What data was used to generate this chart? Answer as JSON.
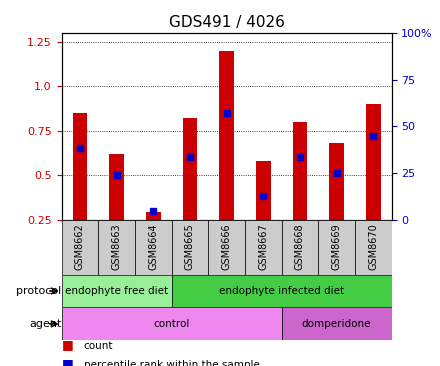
{
  "title": "GDS491 / 4026",
  "samples": [
    "GSM8662",
    "GSM8663",
    "GSM8664",
    "GSM8665",
    "GSM8666",
    "GSM8667",
    "GSM8668",
    "GSM8669",
    "GSM8670"
  ],
  "count_values": [
    0.85,
    0.62,
    0.29,
    0.82,
    1.2,
    0.58,
    0.8,
    0.68,
    0.9
  ],
  "percentile_values": [
    0.65,
    0.5,
    0.3,
    0.6,
    0.85,
    0.38,
    0.6,
    0.51,
    0.72
  ],
  "ylim_left": [
    0.25,
    1.3
  ],
  "ylim_right": [
    0,
    100
  ],
  "yticks_left": [
    0.25,
    0.5,
    0.75,
    1.0,
    1.25
  ],
  "yticks_right": [
    0,
    25,
    50,
    75,
    100
  ],
  "bar_color": "#cc0000",
  "dot_color": "#0000cc",
  "protocol_groups": [
    {
      "label": "endophyte free diet",
      "start": 0,
      "end": 3,
      "color": "#99ee99"
    },
    {
      "label": "endophyte infected diet",
      "start": 3,
      "end": 9,
      "color": "#44cc44"
    }
  ],
  "agent_groups": [
    {
      "label": "control",
      "start": 0,
      "end": 6,
      "color": "#ee88ee"
    },
    {
      "label": "domperidone",
      "start": 6,
      "end": 9,
      "color": "#cc66cc"
    }
  ],
  "protocol_label": "protocol",
  "agent_label": "agent",
  "legend_count_label": "count",
  "legend_pct_label": "percentile rank within the sample",
  "tick_label_color_left": "#cc0000",
  "tick_label_color_right": "#0000cc",
  "bar_width": 0.4,
  "sample_bg_color": "#cccccc",
  "figsize": [
    4.4,
    3.66
  ],
  "dpi": 100
}
